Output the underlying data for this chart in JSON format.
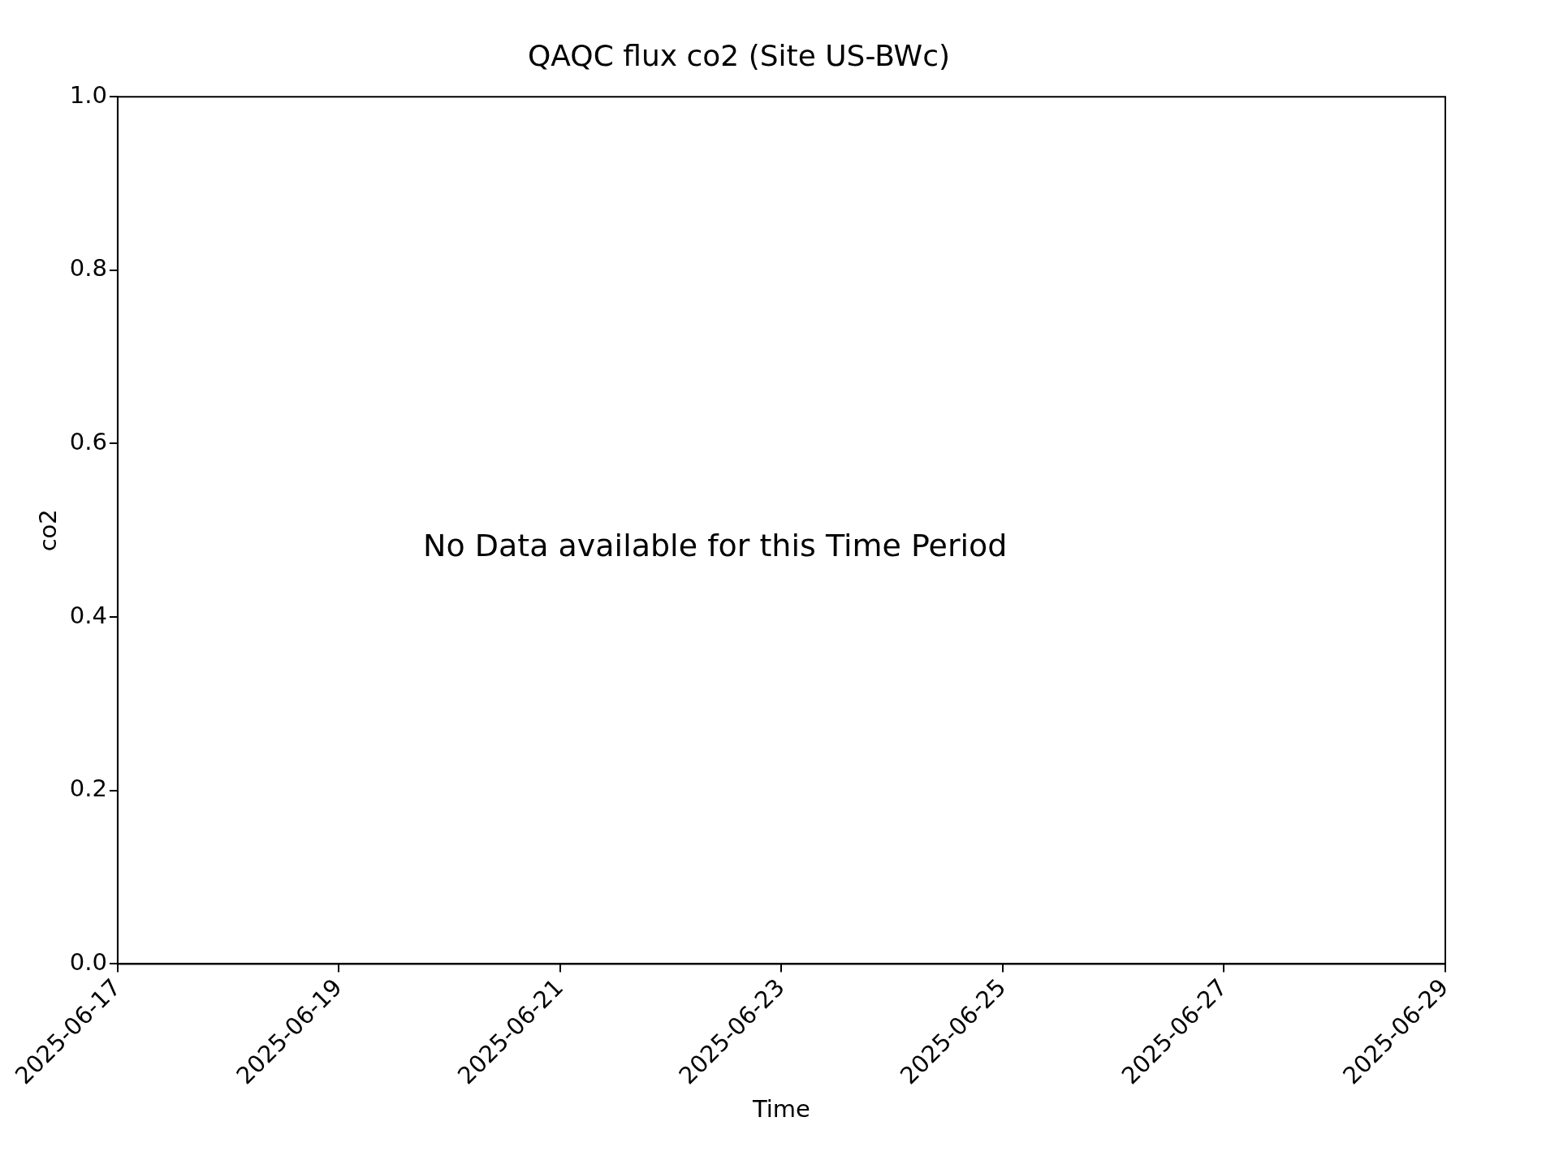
{
  "chart_data": {
    "type": "line",
    "title": "QAQC flux co2 (Site US-BWc)",
    "xlabel": "Time",
    "ylabel": "co2",
    "xlim": [
      "2025-06-17",
      "2025-06-29"
    ],
    "xticks": [
      "2025-06-17",
      "2025-06-19",
      "2025-06-21",
      "2025-06-23",
      "2025-06-25",
      "2025-06-27",
      "2025-06-29"
    ],
    "ylim": [
      0,
      1
    ],
    "yticks": [
      {
        "value": 0,
        "label": "0.0"
      },
      {
        "value": 0.2,
        "label": "0.2"
      },
      {
        "value": 0.4,
        "label": "0.4"
      },
      {
        "value": 0.6,
        "label": "0.6"
      },
      {
        "value": 0.8,
        "label": "0.8"
      },
      {
        "value": 1,
        "label": "1.0"
      }
    ],
    "annotations": [
      "No Data available for this Time Period"
    ],
    "grid": false,
    "legend": false
  }
}
